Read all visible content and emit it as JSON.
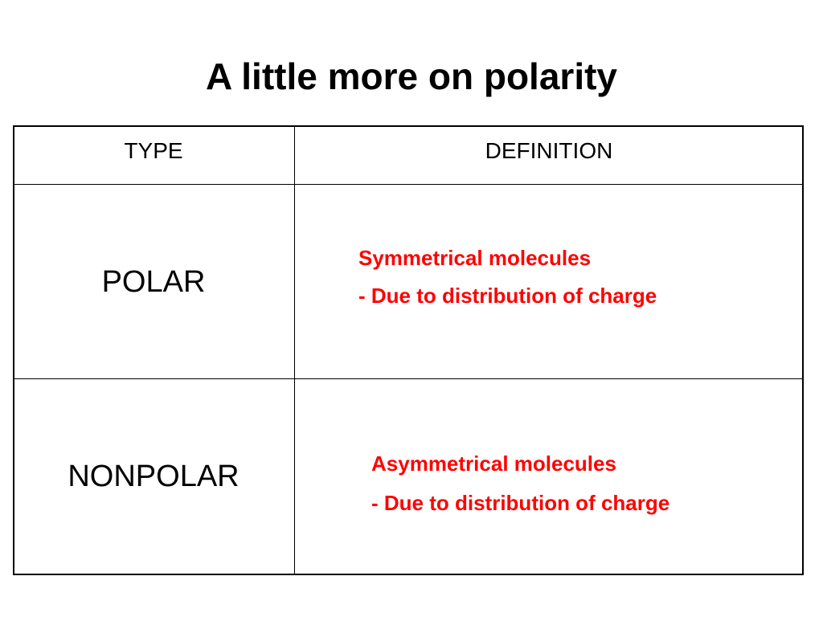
{
  "title": "A little more on polarity",
  "table": {
    "header": [
      "TYPE",
      "DEFINITION"
    ],
    "rows": [
      {
        "type": "POLAR",
        "definition": [
          "Symmetrical molecules",
          "- Due to distribution of charge"
        ]
      },
      {
        "type": "NONPOLAR",
        "definition": [
          "Asymmetrical molecules",
          "- Due to distribution of charge"
        ]
      }
    ]
  }
}
